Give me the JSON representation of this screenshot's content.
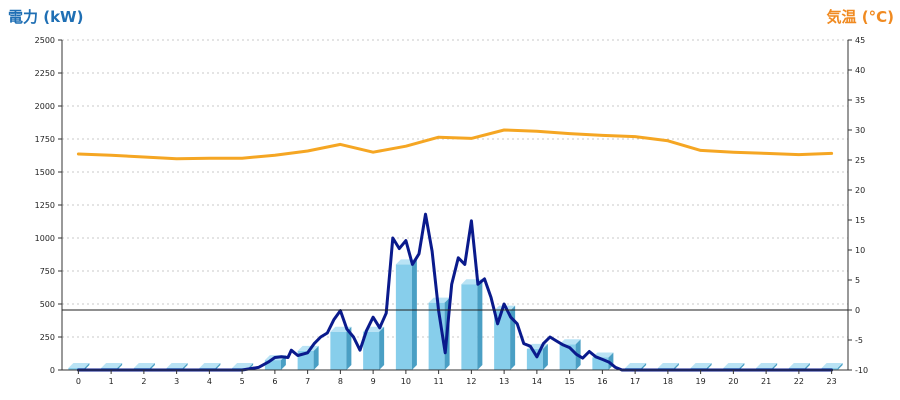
{
  "chart_data": {
    "type": "bar+line",
    "left_axis_title": "電力 (kW)",
    "right_axis_title": "気温 (°C)",
    "left_axis_color": "#1f6fb4",
    "right_axis_color": "#f08a20",
    "ylim_left": [
      0,
      2500
    ],
    "ylim_right": [
      -10,
      45
    ],
    "yticks_left": [
      "0",
      "250",
      "500",
      "750",
      "1000",
      "1250",
      "1500",
      "1750",
      "2000",
      "2250",
      "2500"
    ],
    "yticks_right": [
      "-10",
      "-5",
      "0",
      "5",
      "10",
      "15",
      "20",
      "25",
      "30",
      "35",
      "40",
      "45"
    ],
    "categories": [
      "0",
      "1",
      "2",
      "3",
      "4",
      "5",
      "6",
      "7",
      "8",
      "9",
      "10",
      "11",
      "12",
      "13",
      "14",
      "15",
      "16",
      "17",
      "18",
      "19",
      "20",
      "21",
      "22",
      "23"
    ],
    "reference_line_right": 0,
    "grid": "horizontal-dotted",
    "bar_color": "#87ceeb",
    "bar_side_color": "#4a9fc4",
    "power_line_color": "#0a1a8c",
    "temp_line_color": "#f5a623",
    "series": [
      {
        "kind": "bar",
        "axis": "left",
        "values": [
          0,
          0,
          0,
          0,
          0,
          0,
          75,
          145,
          290,
          290,
          800,
          510,
          650,
          450,
          160,
          195,
          95,
          0,
          0,
          0,
          0,
          0,
          0,
          0
        ]
      },
      {
        "kind": "line",
        "axis": "left",
        "x": [
          0,
          1,
          2,
          3,
          4,
          5,
          5.5,
          5.8,
          6.0,
          6.2,
          6.4,
          6.5,
          6.7,
          7.0,
          7.2,
          7.4,
          7.6,
          7.8,
          8.0,
          8.2,
          8.4,
          8.6,
          8.8,
          9.0,
          9.2,
          9.4,
          9.6,
          9.8,
          10.0,
          10.2,
          10.4,
          10.6,
          10.8,
          11.0,
          11.2,
          11.4,
          11.6,
          11.8,
          12.0,
          12.2,
          12.4,
          12.6,
          12.8,
          13.0,
          13.2,
          13.4,
          13.6,
          13.8,
          14.0,
          14.2,
          14.4,
          14.6,
          14.8,
          15.0,
          15.2,
          15.4,
          15.6,
          15.8,
          16.0,
          16.2,
          16.4,
          16.6,
          16.8,
          17.0,
          18,
          19,
          20,
          21,
          22,
          23
        ],
        "values": [
          0,
          0,
          0,
          0,
          0,
          0,
          20,
          60,
          95,
          100,
          95,
          150,
          110,
          130,
          200,
          250,
          280,
          380,
          450,
          310,
          250,
          150,
          300,
          400,
          320,
          430,
          1000,
          920,
          980,
          800,
          880,
          1180,
          900,
          450,
          130,
          650,
          850,
          800,
          1130,
          650,
          690,
          550,
          350,
          500,
          400,
          350,
          200,
          180,
          100,
          200,
          250,
          220,
          190,
          170,
          120,
          90,
          140,
          100,
          80,
          60,
          20,
          0,
          0,
          0,
          0,
          0,
          0,
          0,
          0,
          0
        ]
      },
      {
        "kind": "line",
        "axis": "right",
        "values": [
          26,
          25.8,
          25.5,
          25.2,
          25.3,
          25.3,
          25.8,
          26.5,
          27.6,
          26.3,
          27.3,
          28.8,
          28.6,
          30,
          29.8,
          29.4,
          29.1,
          28.9,
          28.2,
          26.6,
          26.3,
          26.1,
          25.9,
          26.1
        ]
      }
    ]
  }
}
